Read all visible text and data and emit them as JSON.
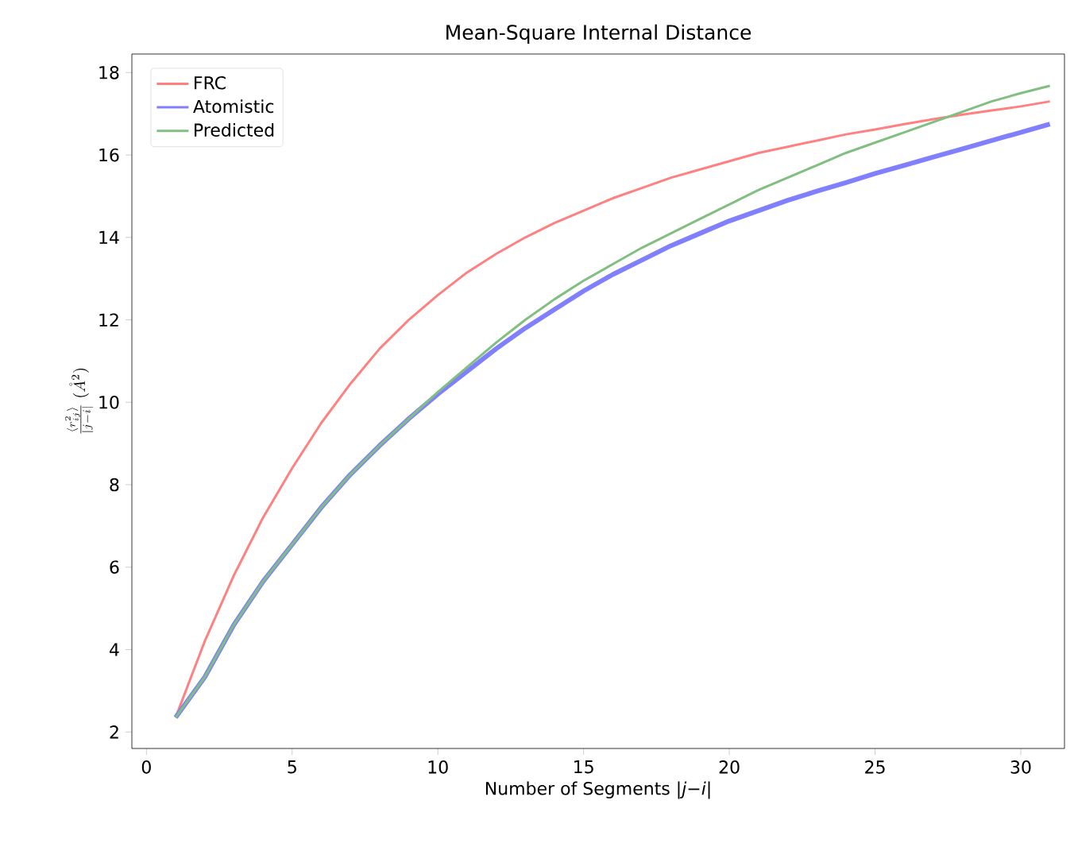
{
  "chart_data": {
    "type": "line",
    "title": "Mean-Square Internal Distance",
    "xlabel": "Number of Segments |*j*−*i*|",
    "ylabel": "\\frac{\\langle r_{ij}^2\\rangle}{|j-i|}\\ (\\mathring{A}^2)",
    "x": [
      1,
      2,
      3,
      4,
      5,
      6,
      7,
      8,
      9,
      10,
      11,
      12,
      13,
      14,
      15,
      16,
      17,
      18,
      19,
      20,
      21,
      22,
      23,
      24,
      25,
      26,
      27,
      28,
      29,
      30,
      31
    ],
    "series": [
      {
        "name": "FRC",
        "color": "#ff8080",
        "values": [
          2.35,
          4.2,
          5.8,
          7.2,
          8.4,
          9.5,
          10.45,
          11.3,
          12.0,
          12.6,
          13.15,
          13.6,
          14.0,
          14.35,
          14.65,
          14.95,
          15.2,
          15.45,
          15.65,
          15.85,
          16.05,
          16.2,
          16.35,
          16.5,
          16.62,
          16.75,
          16.87,
          16.98,
          17.08,
          17.18,
          17.3
        ]
      },
      {
        "name": "Atomistic",
        "color": "#8080ff",
        "values": [
          2.35,
          3.33,
          4.6,
          5.65,
          6.55,
          7.45,
          8.25,
          8.95,
          9.6,
          10.2,
          10.75,
          11.3,
          11.8,
          12.25,
          12.7,
          13.1,
          13.45,
          13.8,
          14.1,
          14.4,
          14.65,
          14.9,
          15.12,
          15.33,
          15.55,
          15.75,
          15.95,
          16.15,
          16.35,
          16.55,
          16.75
        ]
      },
      {
        "name": "Predicted",
        "color": "#80bf80",
        "values": [
          2.35,
          3.33,
          4.6,
          5.65,
          6.55,
          7.45,
          8.25,
          8.95,
          9.6,
          10.25,
          10.85,
          11.45,
          12.0,
          12.5,
          12.95,
          13.35,
          13.75,
          14.1,
          14.45,
          14.8,
          15.15,
          15.45,
          15.75,
          16.05,
          16.3,
          16.55,
          16.8,
          17.05,
          17.3,
          17.5,
          17.68
        ]
      }
    ],
    "xlim": [
      -0.5,
      31.5
    ],
    "ylim": [
      1.6,
      18.45
    ],
    "xticks": [
      0,
      5,
      10,
      15,
      20,
      25,
      30
    ],
    "yticks": [
      2,
      4,
      6,
      8,
      10,
      12,
      14,
      16,
      18
    ],
    "legend": "top left",
    "grid": false,
    "marker": "none",
    "line_style": "solid"
  }
}
